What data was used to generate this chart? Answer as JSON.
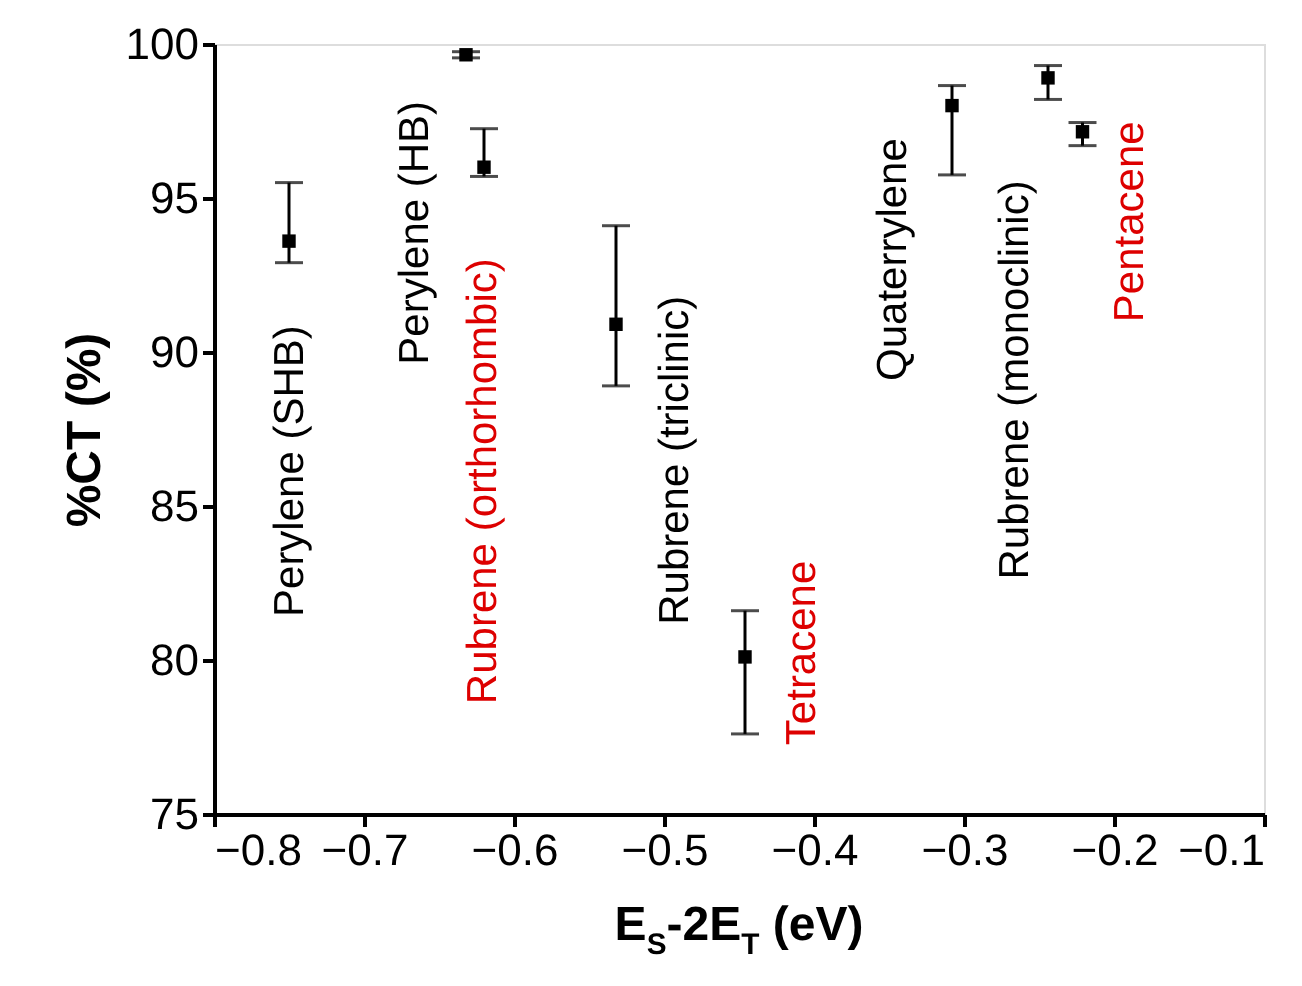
{
  "chart_data": {
    "type": "scatter",
    "xlabel": "E$_{S}$-2E$_{T}$ (eV)",
    "ylabel": "%CT (%)",
    "xlim": [
      -0.8,
      -0.1
    ],
    "xticks": [
      -0.8,
      -0.7,
      -0.6,
      -0.5,
      -0.4,
      -0.3,
      -0.2,
      -0.1
    ],
    "ylim": [
      75,
      100
    ],
    "yticks": [
      75,
      80,
      85,
      90,
      95,
      100
    ],
    "grid": false,
    "marker": "square",
    "series": [
      {
        "color": "#000000",
        "x": [
          -0.75,
          -0.632,
          -0.62,
          -0.532,
          -0.446,
          -0.308,
          -0.244,
          -0.221
        ],
        "values": [
          93.6,
          99.65,
          96.0,
          90.9,
          80.1,
          98.0,
          98.9,
          97.15
        ],
        "errors": [
          [
            92.9,
            95.5
          ],
          [
            99.55,
            99.75
          ],
          [
            95.7,
            97.25
          ],
          [
            88.9,
            94.1
          ],
          [
            77.6,
            81.6
          ],
          [
            95.75,
            98.65
          ],
          [
            98.2,
            99.3
          ],
          [
            96.7,
            97.45
          ]
        ]
      }
    ],
    "annotations": [
      {
        "text": "Perylene (SHB)",
        "x": -0.75,
        "y": 93.6
      },
      {
        "text": "Perylene (HB)",
        "x": -0.632,
        "y": 99.65
      },
      {
        "text": "Rubrene (orthorhombic)",
        "x": -0.62,
        "y": 96.0
      },
      {
        "text": "Rubrene (triclinic)",
        "x": -0.532,
        "y": 90.9
      },
      {
        "text": "Tetracene",
        "x": -0.446,
        "y": 80.1
      },
      {
        "text": "Quaterrylene",
        "x": -0.308,
        "y": 98.0
      },
      {
        "text": "Rubrene (monoclinic)",
        "x": -0.244,
        "y": 98.9
      },
      {
        "text": "Pentacene",
        "x": -0.221,
        "y": 97.15
      }
    ]
  }
}
